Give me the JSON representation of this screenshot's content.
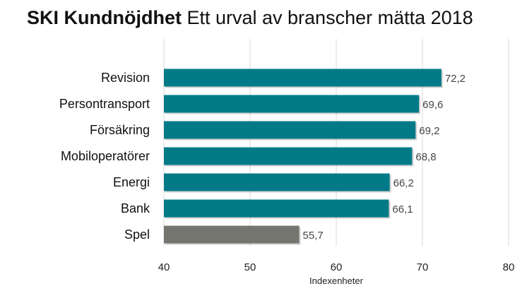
{
  "chart_data": {
    "type": "bar",
    "orientation": "horizontal",
    "title": "SKI Kundnöjdhet",
    "subtitle": "Ett urval av branscher mätta 2018",
    "xlabel": "Indexenheter",
    "ylabel": "",
    "xlim": [
      40,
      80
    ],
    "ticks": [
      40,
      50,
      60,
      70,
      80
    ],
    "tick_labels": [
      "40",
      "50",
      "60",
      "70",
      "80"
    ],
    "grid": true,
    "categories": [
      "Revision",
      "Persontransport",
      "Försäkring",
      "Mobiloperatörer",
      "Energi",
      "Bank",
      "Spel"
    ],
    "values": [
      72.2,
      69.6,
      69.2,
      68.8,
      66.2,
      66.1,
      55.7
    ],
    "value_labels": [
      "72,2",
      "69,6",
      "69,2",
      "68,8",
      "66,2",
      "66,1",
      "55,7"
    ],
    "colors": [
      "#007A87",
      "#007A87",
      "#007A87",
      "#007A87",
      "#007A87",
      "#007A87",
      "#757570"
    ],
    "label_color": "#444444",
    "gridline_color": "#d9d9d9"
  }
}
